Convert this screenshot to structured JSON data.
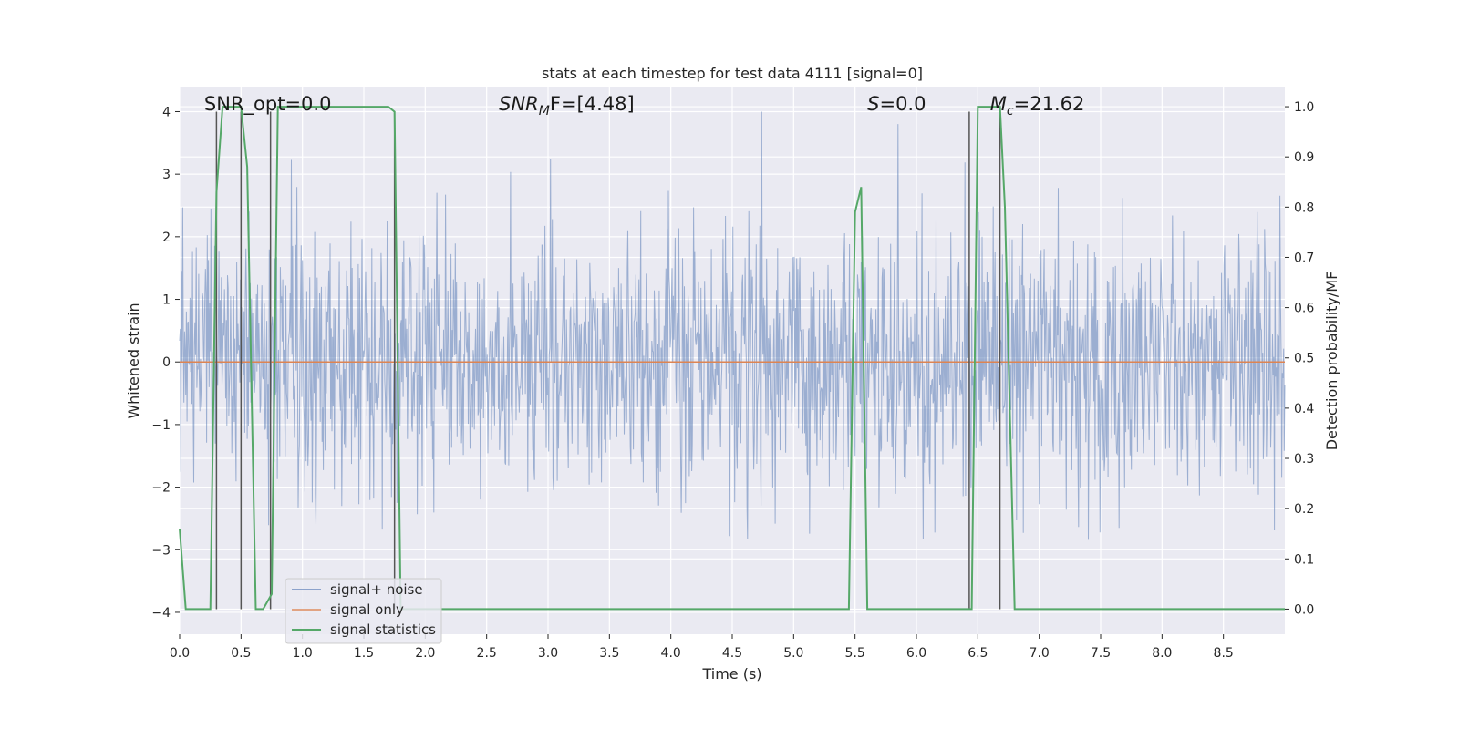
{
  "chart_data": {
    "type": "line",
    "title": "stats at each timestep for test data 4111 [signal=0]",
    "xlabel": "Time (s)",
    "ylabel_left": "Whitened strain",
    "ylabel_right": "Detection probability/MF",
    "xlim": [
      0,
      9.0
    ],
    "ylim_left": [
      -4.35,
      4.4
    ],
    "ylim_right": [
      -0.05,
      1.04
    ],
    "x_ticks": [
      0.0,
      0.5,
      1.0,
      1.5,
      2.0,
      2.5,
      3.0,
      3.5,
      4.0,
      4.5,
      5.0,
      5.5,
      6.0,
      6.5,
      7.0,
      7.5,
      8.0,
      8.5
    ],
    "x_tick_labels": [
      "0.0",
      "0.5",
      "1.0",
      "1.5",
      "2.0",
      "2.5",
      "3.0",
      "3.5",
      "4.0",
      "4.5",
      "5.0",
      "5.5",
      "6.0",
      "6.5",
      "7.0",
      "7.5",
      "8.0",
      "8.5"
    ],
    "y_left_ticks": [
      -4,
      -3,
      -2,
      -1,
      0,
      1,
      2,
      3,
      4
    ],
    "y_left_tick_labels": [
      "−4",
      "−3",
      "−2",
      "−1",
      "0",
      "1",
      "2",
      "3",
      "4"
    ],
    "y_right_ticks": [
      0.0,
      0.1,
      0.2,
      0.3,
      0.4,
      0.5,
      0.6,
      0.7,
      0.8,
      0.9,
      1.0
    ],
    "y_right_tick_labels": [
      "0.0",
      "0.1",
      "0.2",
      "0.3",
      "0.4",
      "0.5",
      "0.6",
      "0.7",
      "0.8",
      "0.9",
      "1.0"
    ],
    "grid": true,
    "legend_placement": "lower-left",
    "colors": {
      "background": "#eaeaf2",
      "noise": "#4c72b0",
      "signal": "#dd8452",
      "statistics": "#55a868",
      "vlines": "#555555"
    },
    "series": [
      {
        "name": "signal+ noise",
        "axis": "left",
        "style": "noise",
        "sample_rate": 200,
        "amplitude_limits": [
          -3.9,
          4.0
        ]
      },
      {
        "name": "signal only",
        "axis": "left",
        "x": [
          0.0,
          9.0
        ],
        "y": [
          0.0,
          0.0
        ]
      },
      {
        "name": "signal statistics",
        "axis": "right",
        "x": [
          0.0,
          0.05,
          0.25,
          0.3,
          0.35,
          0.5,
          0.55,
          0.62,
          0.68,
          0.75,
          0.8,
          1.7,
          1.75,
          1.8,
          2.0,
          4.0,
          5.4,
          5.45,
          5.5,
          5.55,
          5.6,
          6.4,
          6.45,
          6.5,
          6.68,
          6.72,
          6.8,
          8.5,
          9.0
        ],
        "y": [
          0.16,
          0.0,
          0.0,
          0.83,
          1.0,
          1.0,
          0.88,
          0.0,
          0.0,
          0.03,
          1.0,
          1.0,
          0.99,
          0.0,
          0.0,
          0.0,
          0.0,
          0.0,
          0.79,
          0.84,
          0.0,
          0.0,
          0.0,
          1.0,
          1.0,
          0.8,
          0.0,
          0.0,
          0.0
        ]
      }
    ],
    "vertical_lines_x": [
      0.3,
      0.5,
      0.74,
      1.75,
      6.43,
      6.68
    ],
    "annotations": [
      {
        "label": "SNR_opt=0.0",
        "x": 0.2
      },
      {
        "label": "SNR",
        "sub": "M",
        "suffix": "F=[4.48]",
        "italic": true,
        "x": 2.6
      },
      {
        "label": "S",
        "suffix": "=0.0",
        "italic": true,
        "x": 5.6
      },
      {
        "label": "M",
        "sub": "c",
        "suffix": "=21.62",
        "italic": true,
        "x": 6.6
      }
    ]
  }
}
